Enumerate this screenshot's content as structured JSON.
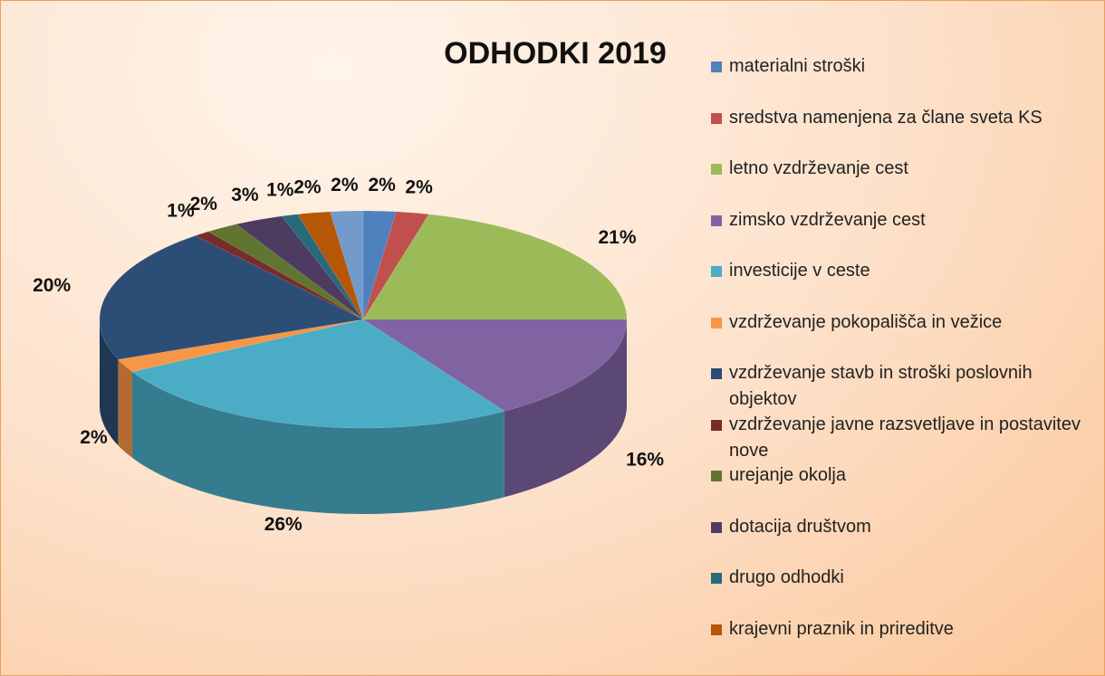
{
  "chart_data": {
    "type": "pie",
    "title": "ODHODKI 2019",
    "categories": [
      "materialni stroški",
      "sredstva namenjena za člane sveta KS",
      "letno vzdrževanje cest",
      "zimsko vzdrževanje cest",
      "investicije v ceste",
      "vzdrževanje pokopališča in vežice",
      "vzdrževanje stavb in stroški poslovnih objektov",
      "vzdrževanje javne razsvetljave in postavitev nove",
      "urejanje okolja",
      "dotacija društvom",
      "drugo odhodki",
      "krajevni praznik in prireditve",
      null
    ],
    "values": [
      2,
      2,
      21,
      16,
      26,
      2,
      20,
      1,
      2,
      3,
      1,
      2,
      2
    ],
    "value_labels": [
      "2%",
      "2%",
      "21%",
      "16%",
      "26%",
      "2%",
      "20%",
      "1%",
      "2%",
      "3%",
      "1%",
      "2%",
      "2%"
    ],
    "colors": [
      "#4f81bd",
      "#c0504d",
      "#9bbb59",
      "#8064a2",
      "#4bacc6",
      "#f79646",
      "#2c4d75",
      "#772c2a",
      "#5f7530",
      "#4d3b62",
      "#276a7c",
      "#b65708",
      "#729aca"
    ],
    "legend": "right"
  }
}
